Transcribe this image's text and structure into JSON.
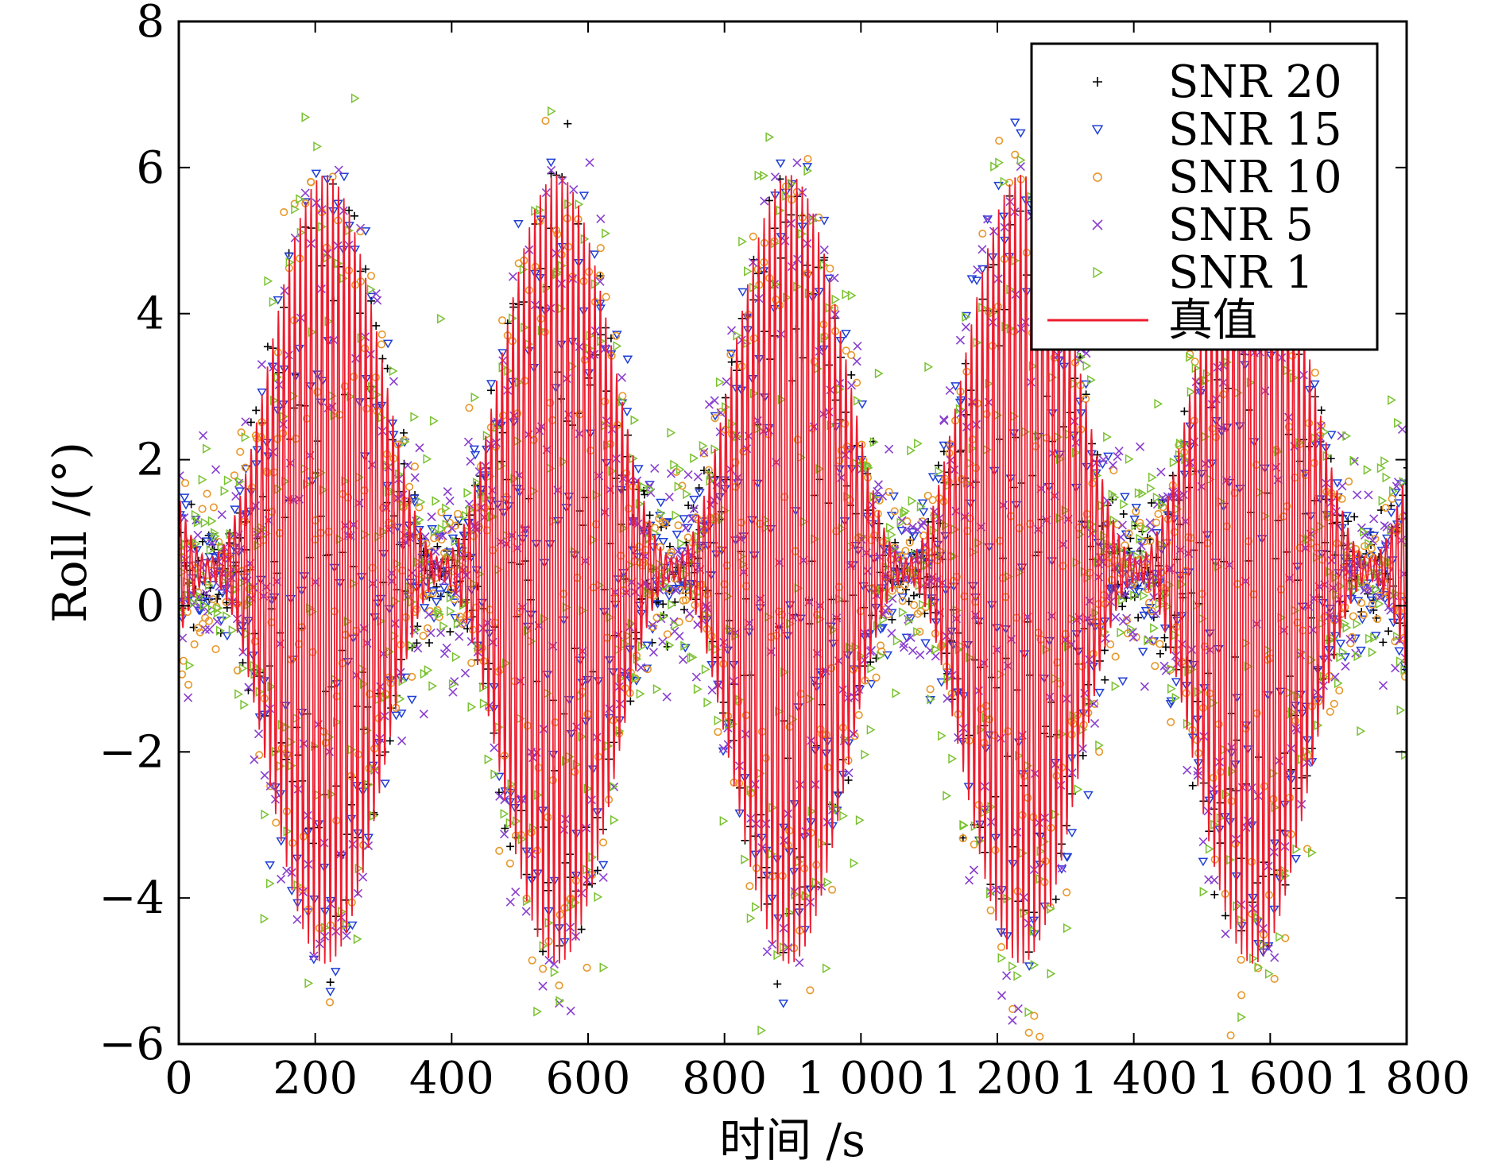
{
  "chart_data": {
    "type": "scatter",
    "title": "",
    "xlabel": "时间 /s",
    "ylabel": "Roll /(°)",
    "xlim": [
      0,
      1800
    ],
    "ylim": [
      -6,
      8
    ],
    "xticks": [
      0,
      200,
      400,
      600,
      800,
      1000,
      1200,
      1400,
      1600,
      1800
    ],
    "xtick_labels": [
      "0",
      "200",
      "400",
      "600",
      "800",
      "1 000",
      "1 200",
      "1 400",
      "1 600",
      "1 800"
    ],
    "yticks": [
      -6,
      -4,
      -2,
      0,
      2,
      4,
      6,
      8
    ],
    "ytick_labels": [
      "−6",
      "−4",
      "−2",
      "0",
      "2",
      "4",
      "6",
      "8"
    ],
    "grid": false,
    "legend_position": "top-right",
    "signal_model": {
      "description": "Rapidly oscillating roll angle inside a slowly varying envelope",
      "center": 0.5,
      "envelope_amplitude_max": 5.4,
      "envelope_period_s": 340,
      "envelope_first_min_s": 45,
      "carrier_period_s": 8
    },
    "series": [
      {
        "name": "SNR 20",
        "marker": "plus",
        "color": "#000000",
        "noise_std": 0.35
      },
      {
        "name": "SNR 15",
        "marker": "triangle-down",
        "color": "#1f3fd6",
        "noise_std": 0.45
      },
      {
        "name": "SNR 10",
        "marker": "circle",
        "color": "#e8972a",
        "noise_std": 0.55
      },
      {
        "name": "SNR 5",
        "marker": "x",
        "color": "#8a3fd0",
        "noise_std": 0.65
      },
      {
        "name": "SNR 1",
        "marker": "triangle-right",
        "color": "#7ac231",
        "noise_std": 0.9
      },
      {
        "name": "真值",
        "marker": "line",
        "color": "#ee1c2e",
        "noise_std": 0
      }
    ]
  }
}
